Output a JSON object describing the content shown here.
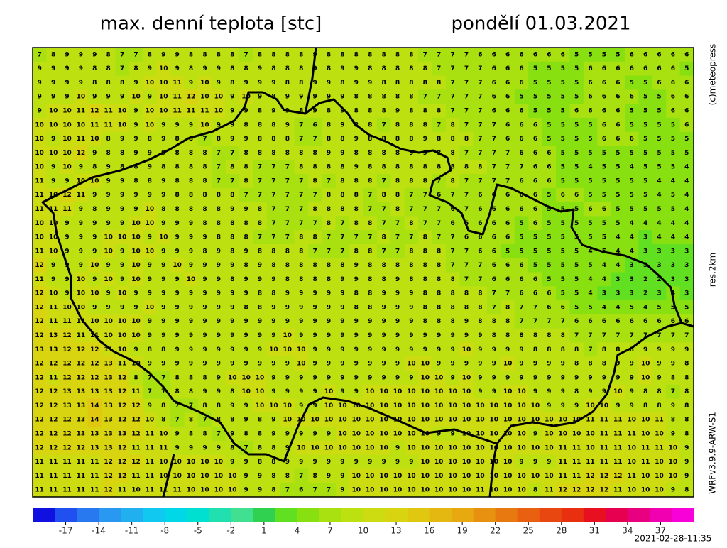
{
  "header": {
    "title": "max. denní teplota [stc]",
    "date": "pondělí 01.03.2021"
  },
  "side": {
    "copyright": "(c)meteopress",
    "resolution": "res.2km",
    "model": "WRFv3.9.9-ARW-S1"
  },
  "footer": {
    "timestamp": "2021-02-28-11:35"
  },
  "colorbar": {
    "clim": [
      -20,
      40
    ],
    "colors": [
      "#1010e0",
      "#2050f0",
      "#2878f0",
      "#2898f0",
      "#20b0f0",
      "#10c8f0",
      "#00d8e8",
      "#00e0d0",
      "#20e0b0",
      "#40e090",
      "#30d050",
      "#60e020",
      "#88e010",
      "#a8e010",
      "#bce010",
      "#ccdc10",
      "#d8d410",
      "#e0c810",
      "#e4b810",
      "#e8a810",
      "#e89010",
      "#e87810",
      "#e86010",
      "#e84810",
      "#e83010",
      "#e81020",
      "#e80050",
      "#e80080",
      "#f000b0",
      "#f800d8"
    ],
    "ticks": [
      -17,
      -14,
      -11,
      -8,
      -5,
      -2,
      1,
      4,
      7,
      10,
      13,
      16,
      19,
      22,
      25,
      28,
      31,
      34,
      37
    ]
  },
  "grid": {
    "rows": [
      [
        7,
        8,
        9,
        9,
        9,
        8,
        7,
        7,
        8,
        9,
        9,
        8,
        8,
        8,
        8,
        7,
        8,
        8,
        8,
        8,
        9,
        8,
        8,
        8,
        8,
        8,
        8,
        8,
        7,
        7,
        7,
        7,
        6,
        6,
        6,
        6,
        6,
        6,
        6,
        5,
        5,
        5,
        5,
        6,
        6,
        6,
        6,
        6
      ],
      [
        9,
        9,
        9,
        9,
        8,
        8,
        7,
        8,
        9,
        10,
        9,
        8,
        9,
        9,
        8,
        8,
        9,
        8,
        8,
        8,
        9,
        8,
        9,
        9,
        8,
        8,
        8,
        8,
        8,
        7,
        7,
        7,
        7,
        6,
        6,
        6,
        5,
        5,
        5,
        5,
        6,
        6,
        6,
        6,
        6,
        6,
        6,
        5
      ],
      [
        9,
        9,
        9,
        9,
        8,
        8,
        8,
        9,
        10,
        10,
        11,
        9,
        10,
        9,
        8,
        9,
        9,
        9,
        8,
        8,
        9,
        9,
        8,
        9,
        9,
        8,
        8,
        8,
        8,
        8,
        7,
        7,
        7,
        6,
        6,
        6,
        5,
        5,
        5,
        5,
        6,
        6,
        6,
        5,
        5,
        6,
        6,
        6
      ],
      [
        9,
        9,
        9,
        10,
        9,
        9,
        9,
        10,
        9,
        10,
        11,
        12,
        10,
        10,
        9,
        10,
        9,
        8,
        9,
        9,
        9,
        9,
        9,
        8,
        8,
        8,
        8,
        8,
        7,
        7,
        7,
        7,
        7,
        6,
        6,
        5,
        5,
        5,
        5,
        5,
        6,
        6,
        6,
        6,
        5,
        5,
        6,
        6
      ],
      [
        9,
        10,
        10,
        11,
        12,
        11,
        10,
        9,
        10,
        10,
        11,
        11,
        11,
        10,
        9,
        9,
        8,
        9,
        9,
        8,
        9,
        8,
        9,
        8,
        8,
        8,
        9,
        8,
        8,
        8,
        7,
        7,
        7,
        6,
        6,
        6,
        5,
        5,
        5,
        6,
        6,
        6,
        6,
        5,
        5,
        5,
        6,
        6
      ],
      [
        10,
        10,
        10,
        10,
        11,
        11,
        10,
        9,
        10,
        9,
        9,
        9,
        10,
        9,
        9,
        8,
        8,
        8,
        9,
        7,
        6,
        8,
        9,
        8,
        8,
        7,
        8,
        8,
        8,
        7,
        8,
        7,
        7,
        7,
        6,
        6,
        6,
        5,
        5,
        5,
        5,
        6,
        6,
        5,
        5,
        5,
        5,
        6
      ],
      [
        10,
        9,
        10,
        11,
        10,
        8,
        9,
        9,
        8,
        9,
        8,
        8,
        7,
        8,
        9,
        9,
        8,
        8,
        8,
        7,
        7,
        8,
        8,
        9,
        8,
        8,
        8,
        8,
        9,
        8,
        8,
        8,
        7,
        7,
        6,
        6,
        6,
        5,
        5,
        5,
        5,
        6,
        6,
        6,
        5,
        5,
        5,
        5
      ],
      [
        10,
        10,
        10,
        12,
        9,
        8,
        8,
        9,
        9,
        9,
        8,
        8,
        8,
        7,
        7,
        8,
        8,
        8,
        8,
        8,
        8,
        9,
        9,
        8,
        8,
        8,
        8,
        9,
        9,
        8,
        8,
        7,
        7,
        7,
        7,
        6,
        6,
        6,
        5,
        5,
        5,
        5,
        5,
        5,
        5,
        5,
        5,
        5
      ],
      [
        10,
        9,
        10,
        9,
        8,
        9,
        8,
        8,
        9,
        8,
        8,
        8,
        8,
        7,
        8,
        8,
        7,
        7,
        7,
        8,
        8,
        8,
        8,
        9,
        8,
        8,
        8,
        8,
        8,
        8,
        8,
        8,
        8,
        7,
        7,
        7,
        6,
        6,
        5,
        5,
        4,
        5,
        5,
        4,
        5,
        5,
        5,
        4
      ],
      [
        11,
        9,
        9,
        10,
        10,
        9,
        9,
        8,
        8,
        9,
        8,
        8,
        8,
        7,
        7,
        8,
        7,
        7,
        7,
        7,
        8,
        7,
        8,
        8,
        8,
        7,
        8,
        8,
        8,
        7,
        8,
        7,
        7,
        7,
        7,
        6,
        6,
        6,
        5,
        5,
        5,
        5,
        5,
        5,
        5,
        4,
        4,
        4
      ],
      [
        11,
        10,
        12,
        11,
        9,
        9,
        9,
        9,
        9,
        9,
        8,
        8,
        8,
        8,
        8,
        7,
        7,
        7,
        7,
        7,
        7,
        8,
        8,
        8,
        7,
        8,
        8,
        7,
        7,
        6,
        7,
        7,
        6,
        6,
        6,
        6,
        6,
        5,
        6,
        6,
        5,
        5,
        5,
        5,
        5,
        4,
        5,
        4
      ],
      [
        11,
        11,
        11,
        9,
        8,
        9,
        9,
        9,
        10,
        8,
        8,
        8,
        8,
        8,
        9,
        9,
        8,
        7,
        7,
        7,
        8,
        8,
        8,
        8,
        7,
        7,
        8,
        7,
        7,
        7,
        6,
        7,
        6,
        6,
        6,
        6,
        6,
        5,
        5,
        5,
        6,
        6,
        5,
        5,
        5,
        5,
        5,
        4
      ],
      [
        10,
        10,
        9,
        9,
        9,
        9,
        9,
        10,
        10,
        9,
        9,
        9,
        8,
        8,
        8,
        8,
        8,
        7,
        7,
        7,
        7,
        8,
        7,
        8,
        8,
        7,
        7,
        8,
        7,
        7,
        6,
        6,
        6,
        6,
        6,
        5,
        6,
        5,
        5,
        5,
        5,
        5,
        5,
        4,
        4,
        4,
        4,
        4
      ],
      [
        10,
        10,
        9,
        9,
        9,
        10,
        10,
        10,
        9,
        10,
        9,
        9,
        9,
        8,
        8,
        8,
        7,
        7,
        7,
        8,
        8,
        7,
        7,
        7,
        7,
        8,
        7,
        7,
        8,
        7,
        7,
        6,
        6,
        6,
        6,
        5,
        5,
        5,
        5,
        5,
        5,
        5,
        4,
        4,
        3,
        4,
        4,
        4
      ],
      [
        11,
        10,
        9,
        9,
        9,
        10,
        9,
        10,
        10,
        9,
        9,
        9,
        8,
        9,
        8,
        9,
        8,
        8,
        8,
        8,
        7,
        7,
        7,
        8,
        8,
        7,
        7,
        8,
        8,
        8,
        7,
        7,
        6,
        6,
        5,
        5,
        5,
        5,
        5,
        5,
        4,
        5,
        4,
        4,
        3,
        3,
        3,
        3
      ],
      [
        12,
        9,
        9,
        9,
        10,
        9,
        9,
        10,
        9,
        9,
        10,
        9,
        9,
        9,
        9,
        8,
        9,
        8,
        8,
        8,
        8,
        8,
        8,
        9,
        8,
        8,
        8,
        8,
        8,
        8,
        7,
        7,
        7,
        6,
        6,
        6,
        5,
        5,
        5,
        5,
        5,
        4,
        4,
        3,
        3,
        3,
        3,
        3
      ],
      [
        11,
        9,
        9,
        10,
        9,
        10,
        9,
        10,
        9,
        9,
        9,
        10,
        9,
        9,
        8,
        9,
        9,
        9,
        8,
        8,
        8,
        8,
        9,
        9,
        8,
        8,
        9,
        8,
        8,
        8,
        8,
        7,
        7,
        6,
        6,
        6,
        6,
        5,
        5,
        5,
        4,
        4,
        3,
        3,
        2,
        2,
        3,
        3
      ],
      [
        12,
        10,
        9,
        10,
        10,
        9,
        10,
        9,
        9,
        9,
        9,
        9,
        9,
        9,
        9,
        9,
        8,
        8,
        9,
        9,
        9,
        9,
        9,
        8,
        8,
        9,
        9,
        9,
        8,
        8,
        8,
        8,
        8,
        7,
        7,
        6,
        6,
        6,
        5,
        5,
        4,
        3,
        3,
        3,
        2,
        3,
        4,
        3
      ],
      [
        12,
        11,
        10,
        10,
        9,
        9,
        9,
        9,
        10,
        9,
        9,
        9,
        9,
        9,
        9,
        8,
        8,
        9,
        9,
        9,
        9,
        9,
        9,
        8,
        8,
        9,
        9,
        9,
        8,
        8,
        8,
        8,
        8,
        7,
        8,
        7,
        7,
        6,
        6,
        5,
        5,
        4,
        4,
        5,
        4,
        5,
        5,
        5
      ],
      [
        12,
        11,
        11,
        11,
        10,
        10,
        10,
        10,
        9,
        9,
        9,
        9,
        9,
        9,
        9,
        9,
        9,
        9,
        9,
        9,
        9,
        9,
        9,
        9,
        9,
        9,
        9,
        9,
        8,
        8,
        8,
        9,
        8,
        8,
        8,
        7,
        7,
        7,
        7,
        6,
        6,
        6,
        6,
        6,
        6,
        6,
        6,
        6
      ],
      [
        12,
        13,
        12,
        11,
        11,
        10,
        10,
        10,
        9,
        9,
        9,
        9,
        9,
        9,
        9,
        9,
        9,
        9,
        10,
        9,
        9,
        9,
        9,
        9,
        9,
        9,
        9,
        9,
        9,
        9,
        9,
        9,
        9,
        8,
        8,
        8,
        8,
        8,
        8,
        7,
        7,
        7,
        7,
        7,
        7,
        7,
        7,
        7
      ],
      [
        13,
        13,
        12,
        12,
        12,
        11,
        10,
        9,
        8,
        8,
        9,
        9,
        9,
        9,
        9,
        9,
        9,
        10,
        10,
        10,
        9,
        9,
        9,
        9,
        9,
        9,
        9,
        9,
        9,
        9,
        9,
        10,
        9,
        9,
        9,
        9,
        8,
        8,
        8,
        8,
        7,
        8,
        8,
        8,
        9,
        9,
        9,
        9
      ],
      [
        12,
        12,
        12,
        12,
        12,
        13,
        11,
        10,
        9,
        9,
        9,
        9,
        9,
        9,
        9,
        9,
        9,
        9,
        9,
        10,
        9,
        9,
        9,
        9,
        9,
        9,
        9,
        10,
        10,
        9,
        9,
        9,
        9,
        9,
        10,
        9,
        9,
        9,
        9,
        8,
        8,
        8,
        9,
        9,
        10,
        9,
        9,
        8
      ],
      [
        12,
        11,
        12,
        12,
        12,
        13,
        12,
        8,
        7,
        7,
        8,
        8,
        8,
        9,
        10,
        10,
        10,
        9,
        9,
        9,
        9,
        9,
        9,
        9,
        9,
        9,
        9,
        9,
        10,
        10,
        9,
        10,
        9,
        9,
        9,
        9,
        9,
        9,
        9,
        9,
        9,
        9,
        9,
        9,
        10,
        9,
        8,
        8
      ],
      [
        12,
        12,
        13,
        13,
        13,
        13,
        12,
        11,
        7,
        7,
        8,
        8,
        9,
        9,
        8,
        10,
        10,
        9,
        9,
        9,
        9,
        10,
        9,
        9,
        10,
        10,
        10,
        10,
        10,
        10,
        10,
        10,
        9,
        9,
        10,
        10,
        9,
        9,
        9,
        8,
        9,
        9,
        10,
        9,
        8,
        8,
        7,
        8
      ],
      [
        12,
        12,
        13,
        13,
        14,
        13,
        12,
        12,
        9,
        8,
        7,
        7,
        8,
        8,
        9,
        9,
        10,
        10,
        10,
        9,
        9,
        10,
        10,
        10,
        10,
        10,
        10,
        10,
        10,
        10,
        10,
        10,
        10,
        10,
        10,
        10,
        10,
        9,
        9,
        9,
        10,
        10,
        9,
        9,
        8,
        8,
        9,
        8
      ],
      [
        12,
        12,
        12,
        13,
        14,
        13,
        12,
        12,
        10,
        8,
        7,
        8,
        7,
        8,
        8,
        9,
        8,
        9,
        10,
        10,
        10,
        10,
        10,
        10,
        10,
        10,
        10,
        10,
        10,
        10,
        10,
        10,
        10,
        10,
        10,
        10,
        10,
        10,
        10,
        10,
        11,
        11,
        11,
        10,
        10,
        11,
        8,
        8
      ],
      [
        12,
        12,
        12,
        13,
        13,
        13,
        13,
        12,
        11,
        10,
        9,
        8,
        8,
        7,
        9,
        8,
        8,
        9,
        9,
        9,
        9,
        9,
        10,
        10,
        10,
        10,
        10,
        10,
        10,
        9,
        9,
        10,
        10,
        10,
        10,
        10,
        9,
        10,
        10,
        10,
        10,
        11,
        11,
        11,
        10,
        10,
        9,
        8
      ],
      [
        12,
        12,
        12,
        12,
        13,
        13,
        12,
        11,
        11,
        11,
        9,
        9,
        9,
        9,
        8,
        7,
        8,
        8,
        9,
        10,
        10,
        10,
        10,
        10,
        10,
        10,
        9,
        10,
        10,
        10,
        10,
        10,
        10,
        10,
        10,
        10,
        10,
        10,
        11,
        11,
        10,
        11,
        11,
        10,
        11,
        11,
        10,
        9
      ],
      [
        11,
        11,
        11,
        11,
        11,
        12,
        12,
        12,
        11,
        10,
        10,
        10,
        10,
        10,
        9,
        9,
        8,
        8,
        9,
        9,
        9,
        9,
        9,
        9,
        9,
        9,
        9,
        9,
        10,
        10,
        10,
        10,
        10,
        10,
        10,
        9,
        9,
        9,
        11,
        11,
        11,
        11,
        11,
        10,
        11,
        10,
        10,
        9
      ],
      [
        11,
        11,
        11,
        11,
        11,
        12,
        12,
        11,
        11,
        10,
        10,
        10,
        10,
        10,
        10,
        9,
        9,
        8,
        8,
        7,
        8,
        9,
        9,
        10,
        10,
        10,
        10,
        10,
        10,
        10,
        10,
        10,
        10,
        10,
        10,
        10,
        10,
        10,
        11,
        11,
        12,
        12,
        12,
        11,
        10,
        10,
        10,
        9
      ],
      [
        11,
        11,
        11,
        11,
        11,
        12,
        11,
        10,
        11,
        11,
        11,
        10,
        10,
        10,
        10,
        9,
        9,
        8,
        7,
        6,
        7,
        7,
        9,
        10,
        10,
        10,
        10,
        10,
        10,
        10,
        10,
        10,
        11,
        10,
        10,
        10,
        8,
        11,
        12,
        12,
        12,
        12,
        11,
        10,
        10,
        10,
        9,
        8
      ]
    ]
  }
}
